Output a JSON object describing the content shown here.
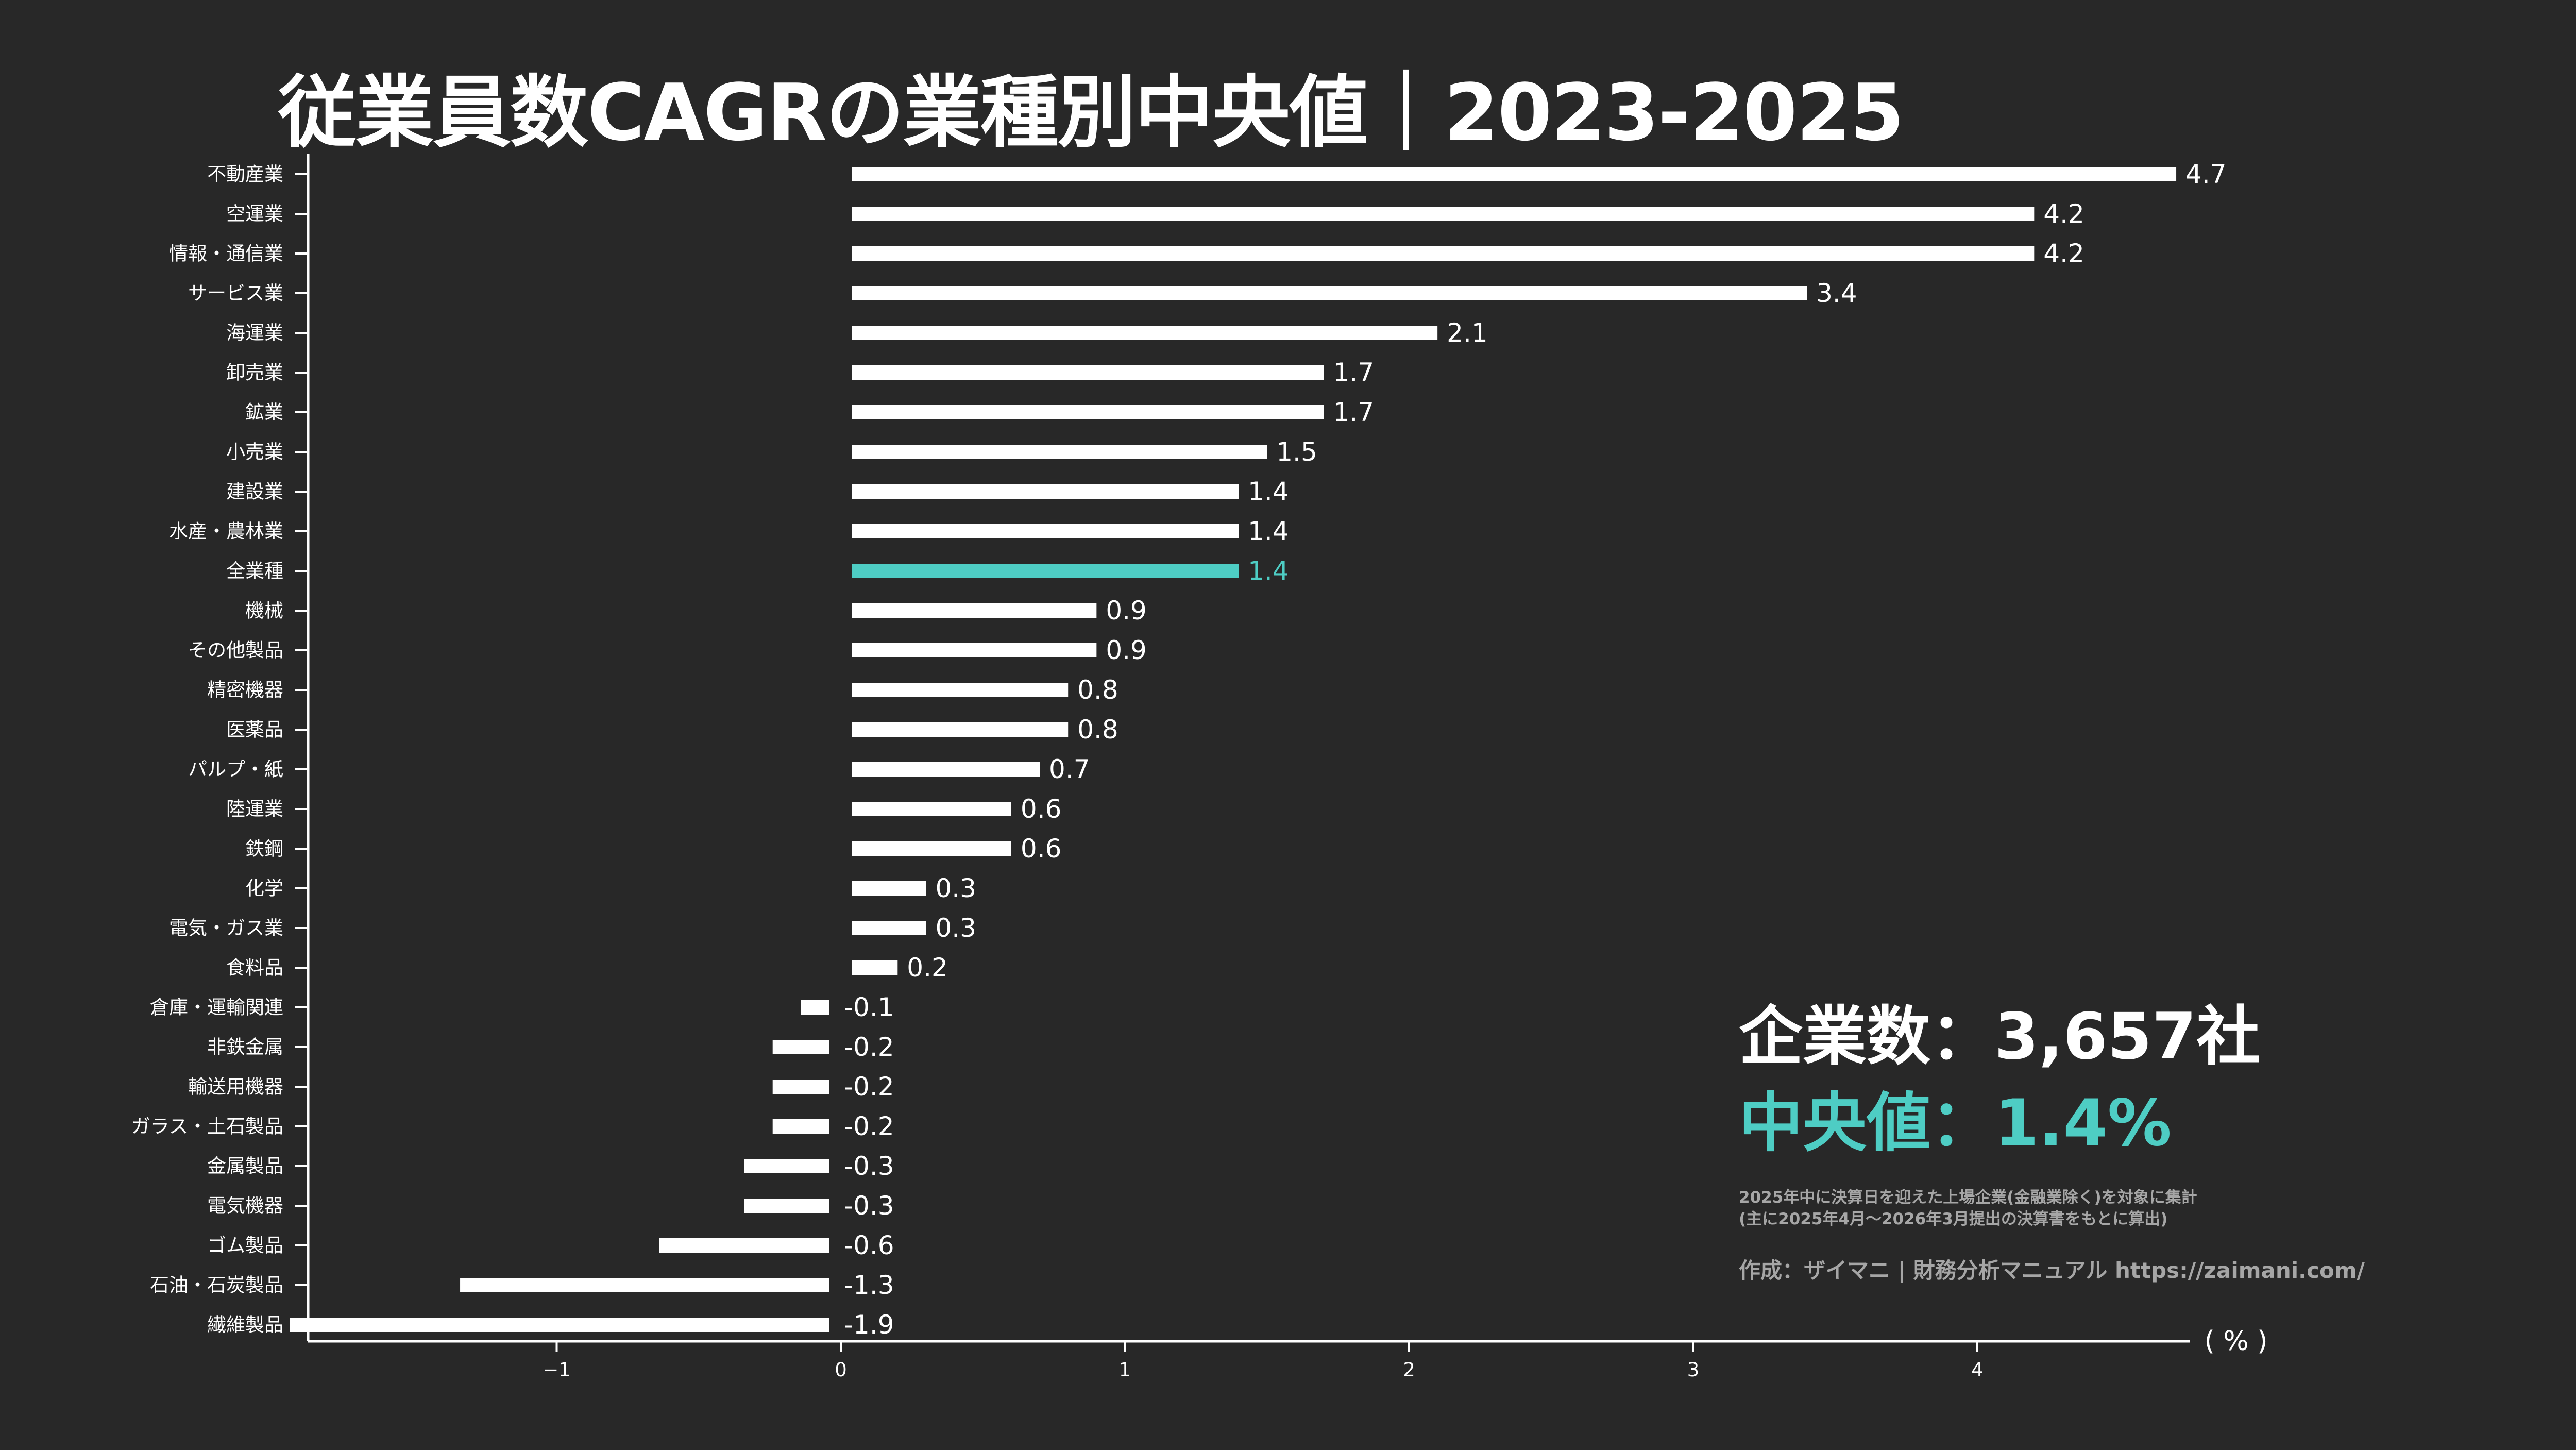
{
  "page": {
    "title": "従業員数CAGRの業種別中央値｜2023-2025",
    "summary": {
      "company_count": "企業数：3,657社",
      "median": "中央値：1.4%"
    },
    "notes": [
      "2025年中に決算日を迎えた上場企業(金融業除く)を対象に集計",
      "(主に2025年4月～2026年3月提出の決算書をもとに算出)"
    ],
    "credit": "作成：ザイマニ | 財務分析マニュアル https://zaimani.com/"
  },
  "colors": {
    "background": "#282828",
    "bar": "#ffffff",
    "highlight": "#4ecdc4",
    "note": "#a6a6a6"
  },
  "chart_data": {
    "type": "bar",
    "orientation": "horizontal",
    "title": "従業員数CAGRの業種別中央値｜2023-2025",
    "xlabel": "",
    "ylabel": "",
    "unit_label": "( % )",
    "xlim": [
      -1.9,
      4.7
    ],
    "x_ticks": [
      -1,
      0,
      1,
      2,
      3,
      4
    ],
    "x_tick_labels": [
      "−1",
      "0",
      "1",
      "2",
      "3",
      "4"
    ],
    "grid": false,
    "highlight_category": "全業種",
    "categories": [
      "不動産業",
      "空運業",
      "情報・通信業",
      "サービス業",
      "海運業",
      "卸売業",
      "鉱業",
      "小売業",
      "建設業",
      "水産・農林業",
      "全業種",
      "機械",
      "その他製品",
      "精密機器",
      "医薬品",
      "パルプ・紙",
      "陸運業",
      "鉄鋼",
      "化学",
      "電気・ガス業",
      "食料品",
      "倉庫・運輸関連",
      "非鉄金属",
      "輸送用機器",
      "ガラス・土石製品",
      "金属製品",
      "電気機器",
      "ゴム製品",
      "石油・石炭製品",
      "繊維製品"
    ],
    "values": [
      4.7,
      4.2,
      4.2,
      3.4,
      2.1,
      1.7,
      1.7,
      1.5,
      1.4,
      1.4,
      1.4,
      0.9,
      0.9,
      0.8,
      0.8,
      0.7,
      0.6,
      0.6,
      0.3,
      0.3,
      0.2,
      -0.1,
      -0.2,
      -0.2,
      -0.2,
      -0.3,
      -0.3,
      -0.6,
      -1.3,
      -1.9
    ],
    "value_labels": [
      "4.7",
      "4.2",
      "4.2",
      "3.4",
      "2.1",
      "1.7",
      "1.7",
      "1.5",
      "1.4",
      "1.4",
      "1.4",
      "0.9",
      "0.9",
      "0.8",
      "0.8",
      "0.7",
      "0.6",
      "0.6",
      "0.3",
      "0.3",
      "0.2",
      "-0.1",
      "-0.2",
      "-0.2",
      "-0.2",
      "-0.3",
      "-0.3",
      "-0.6",
      "-1.3",
      "-1.9"
    ]
  }
}
